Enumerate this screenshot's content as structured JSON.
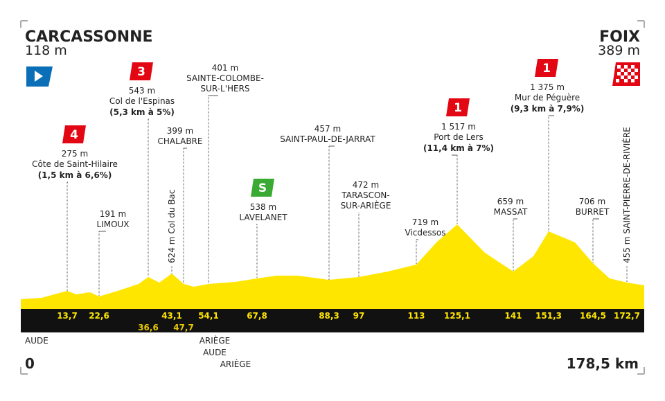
{
  "start": {
    "name": "CARCASSONNE",
    "altitude": "118 m",
    "km": "0",
    "department": "AUDE"
  },
  "finish": {
    "name": "FOIX",
    "altitude": "389 m",
    "km": "178,5 km"
  },
  "waypoints": [
    {
      "km": "13,7",
      "altitude": "275 m",
      "lines": [
        "Côte de Saint-Hilaire"
      ],
      "detail": "(1,5 km à 6,6%)",
      "category": "4",
      "badge_color": "#e30613"
    },
    {
      "km": "22,6",
      "altitude": "191 m",
      "lines": [
        "LIMOUX"
      ]
    },
    {
      "km": "36,6",
      "altitude": "543 m",
      "lines": [
        "Col de l'Espinas"
      ],
      "detail": "(5,3 km à 5%)",
      "category": "3",
      "badge_color": "#e30613"
    },
    {
      "km": "43,1",
      "altitude": "624 m",
      "lines": [
        "Col du Bac"
      ],
      "vertical": true
    },
    {
      "km": "47,7",
      "altitude": "399 m",
      "lines": [
        "CHALABRE"
      ]
    },
    {
      "km": "54,1",
      "altitude": "401 m",
      "lines": [
        "SAINTE-COLOMBE-",
        "SUR-L'HERS"
      ],
      "departments": [
        "ARIÈGE",
        "AUDE",
        "ARIÈGE"
      ]
    },
    {
      "km": "67,8",
      "altitude": "538 m",
      "lines": [
        "LAVELANET"
      ],
      "category": "S",
      "badge_color": "#3aaa35"
    },
    {
      "km": "88,3",
      "altitude": "457 m",
      "lines": [
        "SAINT-PAUL-DE-JARRAT"
      ]
    },
    {
      "km": "97",
      "altitude": "472 m",
      "lines": [
        "TARASCON-",
        "SUR-ARIÈGE"
      ]
    },
    {
      "km": "113",
      "altitude": "719 m",
      "lines": [
        "Vicdessos"
      ]
    },
    {
      "km": "125,1",
      "altitude": "1 517 m",
      "lines": [
        "Port de Lers"
      ],
      "detail": "(11,4 km à 7%)",
      "category": "1",
      "badge_color": "#e30613"
    },
    {
      "km": "141",
      "altitude": "659 m",
      "lines": [
        "MASSAT"
      ]
    },
    {
      "km": "151,3",
      "altitude": "1 375 m",
      "lines": [
        "Mur de Péguère"
      ],
      "detail": "(9,3 km à 7,9%)",
      "category": "1",
      "badge_color": "#e30613"
    },
    {
      "km": "164,5",
      "altitude": "706 m",
      "lines": [
        "BURRET"
      ]
    },
    {
      "km": "172,7",
      "altitude": "455 m",
      "lines": [
        "SAINT-PIERRE-DE-RIVIÈRE"
      ],
      "vertical": true
    }
  ]
}
